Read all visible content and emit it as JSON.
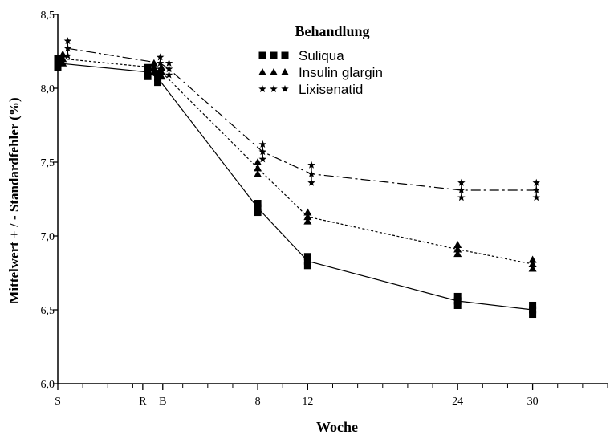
{
  "chart_data": {
    "type": "line",
    "xlabel": "Woche",
    "ylabel": "Mittelwert + / - Standardfehler (%)",
    "ylim": [
      6.0,
      8.5
    ],
    "y_ticks": [
      "6,0",
      "6,5",
      "7,0",
      "7,5",
      "8,0",
      "8,5"
    ],
    "x_tick_labels": [
      "S",
      "R",
      "B",
      "8",
      "12",
      "24",
      "30"
    ],
    "x_ticks_minor": [
      -6,
      -4,
      -2,
      2,
      4,
      6,
      10,
      14,
      16,
      18,
      20,
      22,
      26,
      28,
      32,
      34,
      36
    ],
    "xlim": [
      -8,
      36
    ],
    "grid": false,
    "legend": {
      "title": "Behandlung",
      "placement": "top-center"
    },
    "series": [
      {
        "name": "Suliqua",
        "marker": "square",
        "line_style": "solid",
        "x": [
          -8,
          -0.8,
          0,
          8,
          12,
          24,
          30
        ],
        "y": [
          8.17,
          8.11,
          8.07,
          7.19,
          6.83,
          6.56,
          6.5
        ],
        "err": [
          0.03,
          0.03,
          0.03,
          0.03,
          0.03,
          0.03,
          0.03
        ]
      },
      {
        "name": "Insulin glargin",
        "marker": "triangle",
        "line_style": "dotted",
        "x": [
          -7.6,
          -0.3,
          0.3,
          8,
          12,
          24,
          30
        ],
        "y": [
          8.2,
          8.14,
          8.11,
          7.46,
          7.13,
          6.91,
          6.81
        ],
        "err": [
          0.03,
          0.03,
          0.03,
          0.04,
          0.03,
          0.03,
          0.03
        ]
      },
      {
        "name": "Lixisenatid",
        "marker": "star",
        "line_style": "dashdot",
        "x": [
          -7.2,
          0.2,
          0.9,
          8.4,
          12.3,
          24.3,
          30.3
        ],
        "y": [
          8.27,
          8.17,
          8.13,
          7.57,
          7.42,
          7.31,
          7.31
        ],
        "err": [
          0.05,
          0.04,
          0.04,
          0.05,
          0.06,
          0.05,
          0.05
        ]
      }
    ]
  }
}
